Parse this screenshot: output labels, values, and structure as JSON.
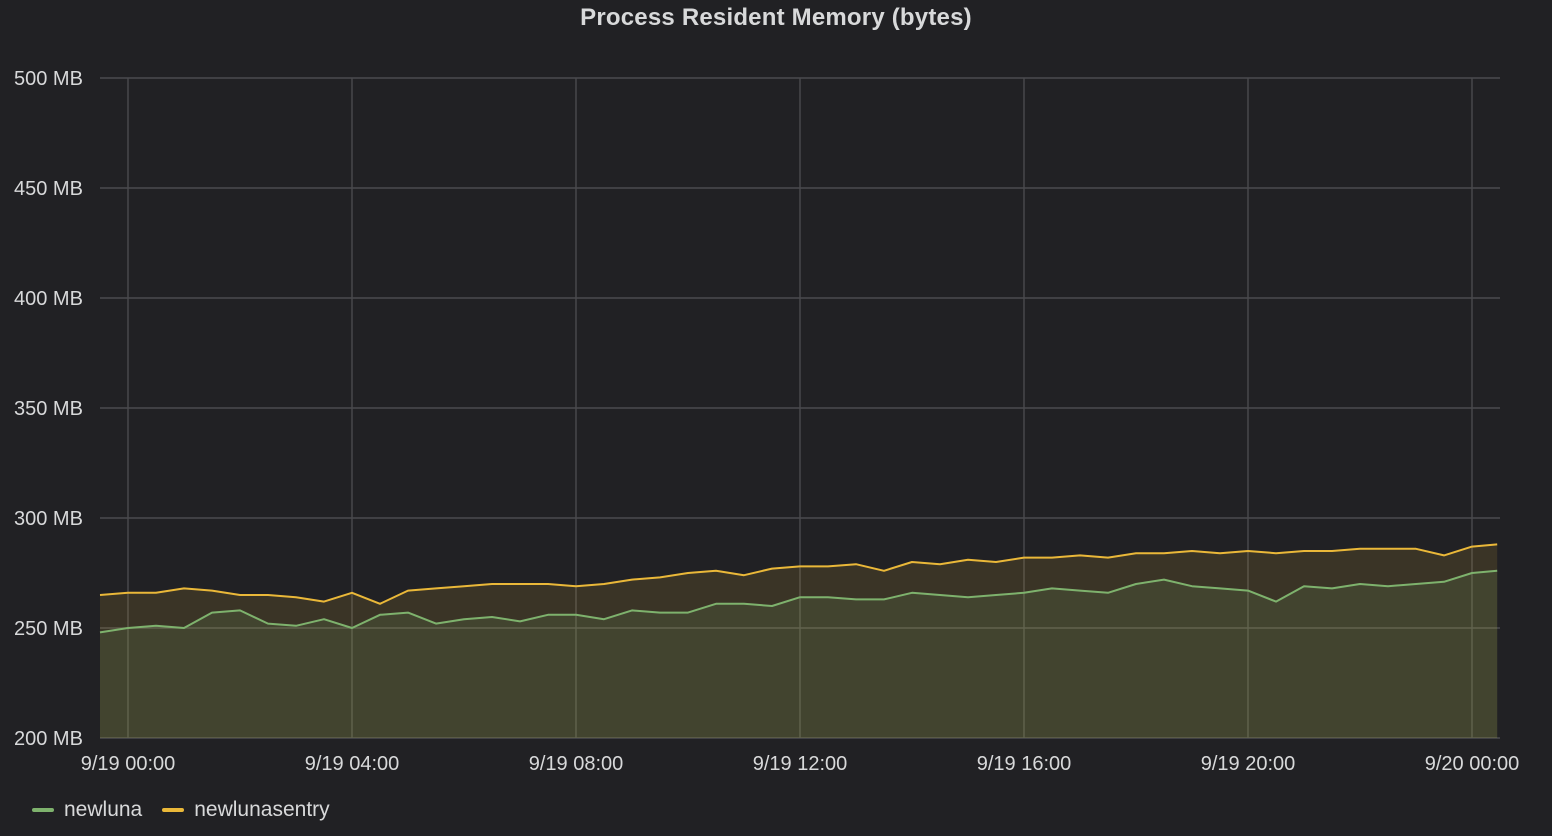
{
  "chart_data": {
    "type": "line",
    "title": "Process Resident Memory (bytes)",
    "xlabel": "",
    "ylabel": "",
    "x_ticks": [
      "9/19 00:00",
      "9/19 04:00",
      "9/19 08:00",
      "9/19 12:00",
      "9/19 16:00",
      "9/19 20:00",
      "9/20 00:00"
    ],
    "x_tick_hours": [
      0,
      4,
      8,
      12,
      16,
      20,
      24
    ],
    "xlim_hours": [
      -0.5,
      24.5
    ],
    "y_ticks": [
      "500 MB",
      "450 MB",
      "400 MB",
      "350 MB",
      "300 MB",
      "250 MB",
      "200 MB"
    ],
    "y_tick_values": [
      500,
      450,
      400,
      350,
      300,
      250,
      200
    ],
    "ylim": [
      200,
      500
    ],
    "unit": "MB",
    "grid": true,
    "legend_position": "bottom-left",
    "fill_area": true,
    "series": [
      {
        "name": "newluna",
        "color": "#7eb26d",
        "x": [
          -0.5,
          0.0,
          0.5,
          1.0,
          1.5,
          2.0,
          2.5,
          3.0,
          3.5,
          4.0,
          4.5,
          5.0,
          5.5,
          6.0,
          6.5,
          7.0,
          7.5,
          8.0,
          8.5,
          9.0,
          9.5,
          10.0,
          10.5,
          11.0,
          11.5,
          12.0,
          12.5,
          13.0,
          13.5,
          14.0,
          14.5,
          15.0,
          15.5,
          16.0,
          16.5,
          17.0,
          17.5,
          18.0,
          18.5,
          19.0,
          19.5,
          20.0,
          20.5,
          21.0,
          21.5,
          22.0,
          22.5,
          23.0,
          23.5,
          24.0,
          24.45
        ],
        "values": [
          248,
          250,
          251,
          250,
          257,
          258,
          252,
          251,
          254,
          250,
          256,
          257,
          252,
          254,
          255,
          253,
          256,
          256,
          254,
          258,
          257,
          257,
          261,
          261,
          260,
          264,
          264,
          263,
          263,
          266,
          265,
          264,
          265,
          266,
          268,
          267,
          266,
          270,
          272,
          269,
          268,
          267,
          262,
          269,
          268,
          270,
          269,
          270,
          271,
          275,
          276
        ]
      },
      {
        "name": "newlunasentry",
        "color": "#eab839",
        "x": [
          -0.5,
          0.0,
          0.5,
          1.0,
          1.5,
          2.0,
          2.5,
          3.0,
          3.5,
          4.0,
          4.5,
          5.0,
          5.5,
          6.0,
          6.5,
          7.0,
          7.5,
          8.0,
          8.5,
          9.0,
          9.5,
          10.0,
          10.5,
          11.0,
          11.5,
          12.0,
          12.5,
          13.0,
          13.5,
          14.0,
          14.5,
          15.0,
          15.5,
          16.0,
          16.5,
          17.0,
          17.5,
          18.0,
          18.5,
          19.0,
          19.5,
          20.0,
          20.5,
          21.0,
          21.5,
          22.0,
          22.5,
          23.0,
          23.5,
          24.0,
          24.45
        ],
        "values": [
          265,
          266,
          266,
          268,
          267,
          265,
          265,
          264,
          262,
          266,
          261,
          267,
          268,
          269,
          270,
          270,
          270,
          269,
          270,
          272,
          273,
          275,
          276,
          274,
          277,
          278,
          278,
          279,
          276,
          280,
          279,
          281,
          280,
          282,
          282,
          283,
          282,
          284,
          284,
          285,
          284,
          285,
          284,
          285,
          285,
          286,
          286,
          286,
          283,
          287,
          288
        ]
      }
    ]
  }
}
